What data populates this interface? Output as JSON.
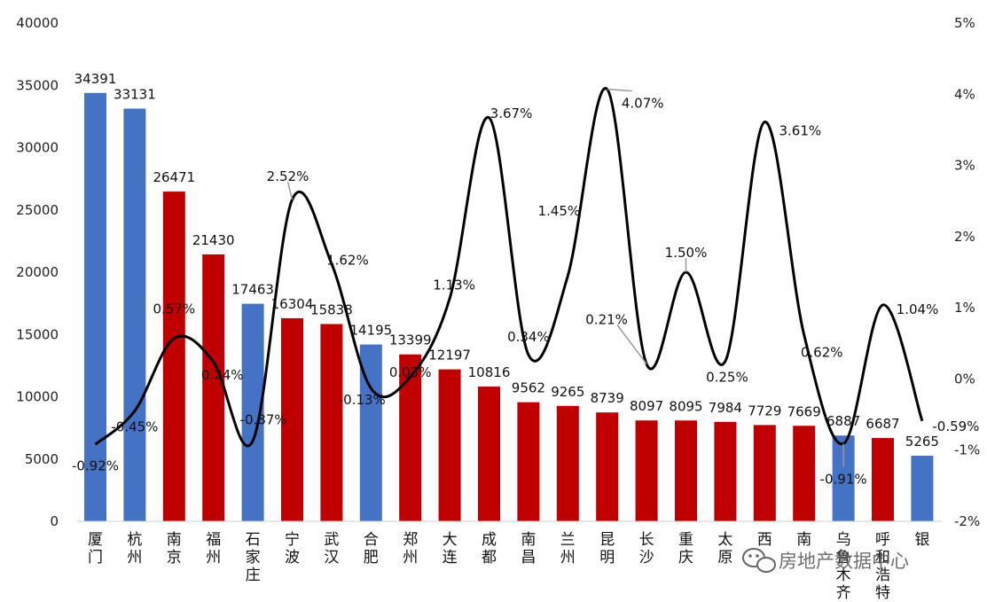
{
  "chart_data": {
    "type": "bar",
    "categories": [
      "厦门",
      "杭州",
      "南京",
      "福州",
      "石家庄",
      "宁波",
      "武汉",
      "合肥",
      "郑州",
      "大连",
      "成都",
      "南昌",
      "兰州",
      "昆明",
      "长沙",
      "重庆",
      "太原",
      "西",
      "南",
      "乌鲁木齐",
      "呼和浩特",
      "银"
    ],
    "series": [
      {
        "type": "bar",
        "axis": "left",
        "values": [
          34391,
          33131,
          26471,
          21430,
          17463,
          16304,
          15838,
          14195,
          13399,
          12197,
          10816,
          9562,
          9265,
          8739,
          8097,
          8095,
          7984,
          7729,
          7669,
          6887,
          6687,
          5265
        ],
        "labels": [
          "34391",
          "33131",
          "26471",
          "21430",
          "17463",
          "16304",
          "15838",
          "14195",
          "13399",
          "12197",
          "10816",
          "9562",
          "9265",
          "8739",
          "8097",
          "8095",
          "7984",
          "7729",
          "7669",
          "6887",
          "6687",
          "5265"
        ],
        "colors": [
          "#4472c4",
          "#4472c4",
          "#c00000",
          "#c00000",
          "#4472c4",
          "#c00000",
          "#c00000",
          "#4472c4",
          "#c00000",
          "#c00000",
          "#c00000",
          "#c00000",
          "#c00000",
          "#c00000",
          "#c00000",
          "#c00000",
          "#c00000",
          "#c00000",
          "#c00000",
          "#4472c4",
          "#c00000",
          "#4472c4"
        ]
      },
      {
        "type": "line",
        "axis": "right",
        "values": [
          -0.92,
          -0.45,
          0.57,
          0.24,
          -0.87,
          2.52,
          1.62,
          -0.13,
          0.03,
          1.13,
          3.67,
          0.34,
          1.45,
          4.07,
          0.21,
          1.5,
          0.25,
          3.61,
          0.62,
          -0.91,
          1.04,
          -0.59
        ],
        "labels": [
          "-0.92%",
          "-0.45%",
          "0.57%",
          "0.24%",
          "-0.87%",
          "2.52%",
          "1.62%",
          "-0.13%",
          "0.03%",
          "1.13%",
          "3.67%",
          "0.34%",
          "1.45%",
          "4.07%",
          "0.21%",
          "1.50%",
          "0.25%",
          "3.61%",
          "0.62%",
          "-0.91%",
          "1.04%",
          "-0.59%"
        ],
        "color": "#000000"
      }
    ],
    "y_left": {
      "ylim": [
        0,
        40000
      ],
      "ticks": [
        "0",
        "5000",
        "10000",
        "15000",
        "20000",
        "25000",
        "30000",
        "35000",
        "40000"
      ]
    },
    "y_right": {
      "ylim": [
        -2,
        5
      ],
      "ticks": [
        "-2%",
        "-1%",
        "0%",
        "1%",
        "2%",
        "3%",
        "4%",
        "5%"
      ]
    },
    "grid": false,
    "legend": "none"
  },
  "watermark": {
    "text": "房地产数据中心",
    "icon": "wechat-icon"
  }
}
